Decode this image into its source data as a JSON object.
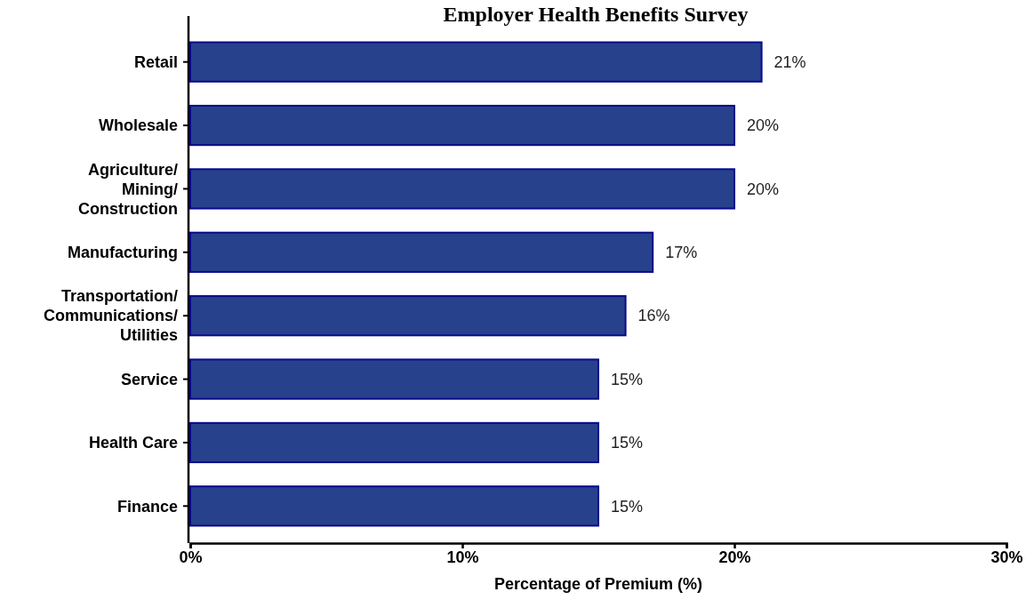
{
  "chart_data": {
    "type": "bar",
    "orientation": "horizontal",
    "title": "Employer Health Benefits Survey",
    "xlabel": "Percentage of Premium (%)",
    "categories": [
      "Retail",
      "Wholesale",
      "Agriculture/\nMining/\nConstruction",
      "Manufacturing",
      "Transportation/\nCommunications/\nUtilities",
      "Service",
      "Health Care",
      "Finance"
    ],
    "values": [
      21,
      20,
      20,
      17,
      16,
      15,
      15,
      15
    ],
    "value_labels": [
      "21%",
      "20%",
      "20%",
      "17%",
      "16%",
      "15%",
      "15%",
      "15%"
    ],
    "color": "#27418d",
    "xlim": [
      0,
      30
    ],
    "xticks": [
      {
        "value": 0,
        "label": "0%"
      },
      {
        "value": 10,
        "label": "10%"
      },
      {
        "value": 20,
        "label": "20%"
      },
      {
        "value": 30,
        "label": "30%"
      }
    ],
    "grid": false
  }
}
